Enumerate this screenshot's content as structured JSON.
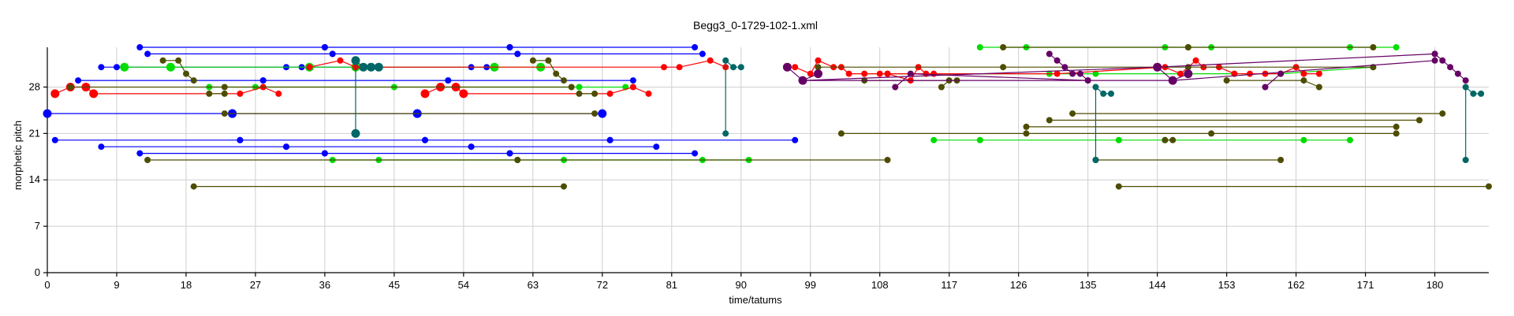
{
  "chart_data": {
    "type": "scatter",
    "title": "Begg3_0-1729-102-1.xml",
    "xlabel": "time/tatums",
    "ylabel": "morphetic pitch",
    "xlim": [
      0,
      187
    ],
    "ylim": [
      0,
      34
    ],
    "x_ticks": [
      0,
      9,
      18,
      27,
      36,
      45,
      54,
      63,
      72,
      81,
      90,
      99,
      108,
      117,
      126,
      135,
      144,
      153,
      162,
      171,
      180
    ],
    "y_ticks": [
      0,
      7,
      14,
      21,
      28
    ],
    "grid": true,
    "colors": {
      "blue": "#0000ff",
      "red": "#ff0000",
      "green": "#00dd00",
      "olive": "#4d4d00",
      "teal": "#006666",
      "purple": "#660066"
    },
    "series": [
      {
        "color": "blue",
        "shape": "line",
        "x": [
          12,
          36
        ],
        "y": [
          34,
          34
        ]
      },
      {
        "color": "blue",
        "shape": "line",
        "x": [
          36,
          60
        ],
        "y": [
          34,
          34
        ]
      },
      {
        "color": "blue",
        "shape": "line",
        "x": [
          60,
          84
        ],
        "y": [
          34,
          34
        ]
      },
      {
        "color": "blue",
        "shape": "line",
        "x": [
          13,
          37
        ],
        "y": [
          33,
          33
        ]
      },
      {
        "color": "blue",
        "shape": "line",
        "x": [
          37,
          61
        ],
        "y": [
          33,
          33
        ]
      },
      {
        "color": "blue",
        "shape": "line",
        "x": [
          61,
          85
        ],
        "y": [
          33,
          33
        ]
      },
      {
        "color": "blue",
        "shape": "line",
        "x": [
          4,
          28
        ],
        "y": [
          29,
          29
        ]
      },
      {
        "color": "blue",
        "shape": "line",
        "x": [
          28,
          52
        ],
        "y": [
          29,
          29
        ]
      },
      {
        "color": "blue",
        "shape": "line",
        "x": [
          52,
          76
        ],
        "y": [
          29,
          29
        ]
      },
      {
        "color": "blue",
        "shape": "line",
        "x": [
          0,
          24
        ],
        "y": [
          24,
          24
        ],
        "big": true
      },
      {
        "color": "blue",
        "shape": "line",
        "x": [
          24,
          48
        ],
        "y": [
          24,
          24
        ],
        "big": true
      },
      {
        "color": "blue",
        "shape": "line",
        "x": [
          48,
          72
        ],
        "y": [
          24,
          24
        ],
        "big": true
      },
      {
        "color": "blue",
        "shape": "line",
        "x": [
          1,
          25
        ],
        "y": [
          20,
          20
        ]
      },
      {
        "color": "blue",
        "shape": "line",
        "x": [
          25,
          49
        ],
        "y": [
          20,
          20
        ]
      },
      {
        "color": "blue",
        "shape": "line",
        "x": [
          49,
          73
        ],
        "y": [
          20,
          20
        ]
      },
      {
        "color": "blue",
        "shape": "line",
        "x": [
          73,
          97
        ],
        "y": [
          20,
          20
        ]
      },
      {
        "color": "blue",
        "shape": "line",
        "x": [
          7,
          31
        ],
        "y": [
          19,
          19
        ]
      },
      {
        "color": "blue",
        "shape": "line",
        "x": [
          31,
          55
        ],
        "y": [
          19,
          19
        ]
      },
      {
        "color": "blue",
        "shape": "line",
        "x": [
          55,
          79
        ],
        "y": [
          19,
          19
        ]
      },
      {
        "color": "blue",
        "shape": "line",
        "x": [
          12,
          36
        ],
        "y": [
          18,
          18
        ]
      },
      {
        "color": "blue",
        "shape": "line",
        "x": [
          36,
          60
        ],
        "y": [
          18,
          18
        ]
      },
      {
        "color": "blue",
        "shape": "line",
        "x": [
          60,
          84
        ],
        "y": [
          18,
          18
        ]
      },
      {
        "color": "blue",
        "shape": "line",
        "x": [
          7,
          9,
          31,
          33,
          55,
          57
        ],
        "y": [
          31,
          31,
          31,
          31,
          31,
          31
        ]
      },
      {
        "color": "green",
        "shape": "line",
        "x": [
          10,
          16,
          34,
          40,
          58,
          64
        ],
        "y": [
          31,
          31,
          31,
          31,
          31,
          31
        ],
        "big": true
      },
      {
        "color": "green",
        "shape": "line",
        "x": [
          21,
          27,
          45,
          51,
          69,
          75
        ],
        "y": [
          28,
          28,
          28,
          28,
          28,
          28
        ]
      },
      {
        "color": "green",
        "shape": "line",
        "x": [
          37,
          43,
          61,
          67,
          85,
          91
        ],
        "y": [
          17,
          17,
          17,
          17,
          17,
          17
        ]
      },
      {
        "color": "green",
        "shape": "line",
        "x": [
          121,
          127,
          145,
          151,
          169,
          175
        ],
        "y": [
          34,
          34,
          34,
          34,
          34,
          34
        ]
      },
      {
        "color": "green",
        "shape": "line",
        "x": [
          106,
          112,
          130,
          136,
          154,
          160,
          172
        ],
        "y": [
          30,
          30,
          30,
          30,
          30,
          30,
          31
        ]
      },
      {
        "color": "green",
        "shape": "line",
        "x": [
          115,
          121,
          139,
          145,
          163,
          169
        ],
        "y": [
          20,
          20,
          20,
          20,
          20,
          20
        ]
      },
      {
        "color": "red",
        "shape": "line",
        "x": [
          1,
          3,
          5,
          6
        ],
        "y": [
          27,
          28,
          28,
          27
        ],
        "big": true
      },
      {
        "color": "red",
        "shape": "line",
        "x": [
          6,
          25,
          28,
          30
        ],
        "y": [
          27,
          27,
          28,
          27
        ]
      },
      {
        "color": "red",
        "shape": "line",
        "x": [
          49,
          51,
          53,
          54
        ],
        "y": [
          27,
          28,
          28,
          27
        ],
        "big": true
      },
      {
        "color": "red",
        "shape": "line",
        "x": [
          54,
          73,
          76,
          78
        ],
        "y": [
          27,
          27,
          28,
          27
        ]
      },
      {
        "color": "red",
        "shape": "line",
        "x": [
          34,
          38,
          40,
          80,
          82,
          86,
          88
        ],
        "y": [
          31,
          32,
          31,
          31,
          31,
          32,
          31
        ]
      },
      {
        "color": "red",
        "shape": "line",
        "x": [
          97,
          99,
          100,
          102,
          103,
          104,
          106,
          108,
          109,
          112,
          113,
          114,
          115
        ],
        "y": [
          31,
          30,
          32,
          31,
          31,
          30,
          30,
          30,
          30,
          29,
          31,
          30,
          30
        ]
      },
      {
        "color": "red",
        "shape": "line",
        "x": [
          109,
          131,
          145,
          147,
          149,
          150,
          152,
          154,
          156,
          158,
          160,
          162,
          163,
          165
        ],
        "y": [
          30,
          30,
          31,
          30,
          32,
          31,
          31,
          30,
          30,
          30,
          30,
          31,
          30,
          30
        ]
      },
      {
        "color": "olive",
        "shape": "line",
        "x": [
          3,
          23,
          68
        ],
        "y": [
          28,
          28,
          28
        ]
      },
      {
        "color": "olive",
        "shape": "line",
        "x": [
          15,
          17,
          18,
          19
        ],
        "y": [
          32,
          32,
          30,
          29
        ]
      },
      {
        "color": "olive",
        "shape": "line",
        "x": [
          21,
          23
        ],
        "y": [
          27,
          27
        ]
      },
      {
        "color": "olive",
        "shape": "line",
        "x": [
          63,
          65,
          66,
          67
        ],
        "y": [
          32,
          32,
          30,
          29
        ]
      },
      {
        "color": "olive",
        "shape": "line",
        "x": [
          69,
          71
        ],
        "y": [
          27,
          27
        ]
      },
      {
        "color": "olive",
        "shape": "line",
        "x": [
          23,
          71
        ],
        "y": [
          24,
          24
        ]
      },
      {
        "color": "olive",
        "shape": "line",
        "x": [
          13,
          61,
          109
        ],
        "y": [
          17,
          17,
          17
        ]
      },
      {
        "color": "olive",
        "shape": "line",
        "x": [
          19,
          67
        ],
        "y": [
          13,
          13
        ]
      },
      {
        "color": "olive",
        "shape": "line",
        "x": [
          100,
          124,
          148,
          172
        ],
        "y": [
          31,
          31,
          31,
          31
        ]
      },
      {
        "color": "olive",
        "shape": "line",
        "x": [
          106,
          118
        ],
        "y": [
          29,
          29
        ]
      },
      {
        "color": "olive",
        "shape": "line",
        "x": [
          116,
          117
        ],
        "y": [
          28,
          29
        ]
      },
      {
        "color": "olive",
        "shape": "line",
        "x": [
          124,
          148
        ],
        "y": [
          34,
          34
        ]
      },
      {
        "color": "olive",
        "shape": "line",
        "x": [
          148,
          172
        ],
        "y": [
          34,
          34
        ]
      },
      {
        "color": "olive",
        "shape": "line",
        "x": [
          153,
          163,
          165
        ],
        "y": [
          29,
          29,
          28
        ]
      },
      {
        "color": "olive",
        "shape": "line",
        "x": [
          103,
          127,
          151,
          175
        ],
        "y": [
          21,
          21,
          21,
          21
        ]
      },
      {
        "color": "olive",
        "shape": "line",
        "x": [
          127,
          175
        ],
        "y": [
          22,
          22
        ]
      },
      {
        "color": "olive",
        "shape": "line",
        "x": [
          130,
          178
        ],
        "y": [
          23,
          23
        ]
      },
      {
        "color": "olive",
        "shape": "line",
        "x": [
          133,
          181
        ],
        "y": [
          24,
          24
        ]
      },
      {
        "color": "olive",
        "shape": "line",
        "x": [
          136,
          160
        ],
        "y": [
          17,
          17
        ]
      },
      {
        "color": "olive",
        "shape": "line",
        "x": [
          139,
          187
        ],
        "y": [
          13,
          13
        ]
      },
      {
        "color": "olive",
        "shape": "line",
        "x": [
          145,
          146
        ],
        "y": [
          20,
          20
        ]
      },
      {
        "color": "teal",
        "shape": "line",
        "x": [
          40,
          40,
          41,
          42,
          43
        ],
        "y": [
          21,
          32,
          31,
          31,
          31
        ],
        "big": true
      },
      {
        "color": "teal",
        "shape": "line",
        "x": [
          88,
          88,
          89,
          90
        ],
        "y": [
          21,
          32,
          31,
          31
        ]
      },
      {
        "color": "teal",
        "shape": "line",
        "x": [
          136,
          136,
          137,
          138
        ],
        "y": [
          17,
          28,
          27,
          27
        ]
      },
      {
        "color": "teal",
        "shape": "line",
        "x": [
          184,
          184,
          185,
          186
        ],
        "y": [
          17,
          28,
          27,
          27
        ]
      },
      {
        "color": "purple",
        "shape": "line",
        "x": [
          96,
          98,
          100
        ],
        "y": [
          31,
          29,
          30
        ],
        "big": true
      },
      {
        "color": "purple",
        "shape": "line",
        "x": [
          98,
          144,
          180
        ],
        "y": [
          29,
          31,
          33
        ]
      },
      {
        "color": "purple",
        "shape": "line",
        "x": [
          98,
          146,
          180
        ],
        "y": [
          29,
          29,
          32
        ]
      },
      {
        "color": "purple",
        "shape": "line",
        "x": [
          130,
          131,
          132,
          133,
          134,
          135
        ],
        "y": [
          33,
          32,
          31,
          30,
          30,
          29
        ]
      },
      {
        "color": "purple",
        "shape": "line",
        "x": [
          110,
          112,
          135
        ],
        "y": [
          28,
          30,
          29
        ]
      },
      {
        "color": "purple",
        "shape": "line",
        "x": [
          144,
          146,
          148
        ],
        "y": [
          31,
          29,
          30
        ],
        "big": true
      },
      {
        "color": "purple",
        "shape": "line",
        "x": [
          158,
          160
        ],
        "y": [
          28,
          30
        ]
      },
      {
        "color": "purple",
        "shape": "line",
        "x": [
          180,
          181,
          182,
          183,
          184
        ],
        "y": [
          33,
          32,
          31,
          30,
          29
        ]
      }
    ]
  }
}
